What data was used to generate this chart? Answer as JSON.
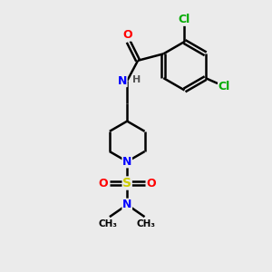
{
  "background_color": "#ebebeb",
  "bond_color": "black",
  "bond_width": 1.8,
  "atom_colors": {
    "C": "black",
    "N": "blue",
    "O": "red",
    "S": "#cccc00",
    "Cl": "#00aa00",
    "H": "#555555"
  },
  "font_size": 9,
  "fig_size": [
    3.0,
    3.0
  ],
  "dpi": 100,
  "xlim": [
    0,
    10
  ],
  "ylim": [
    0,
    10
  ]
}
